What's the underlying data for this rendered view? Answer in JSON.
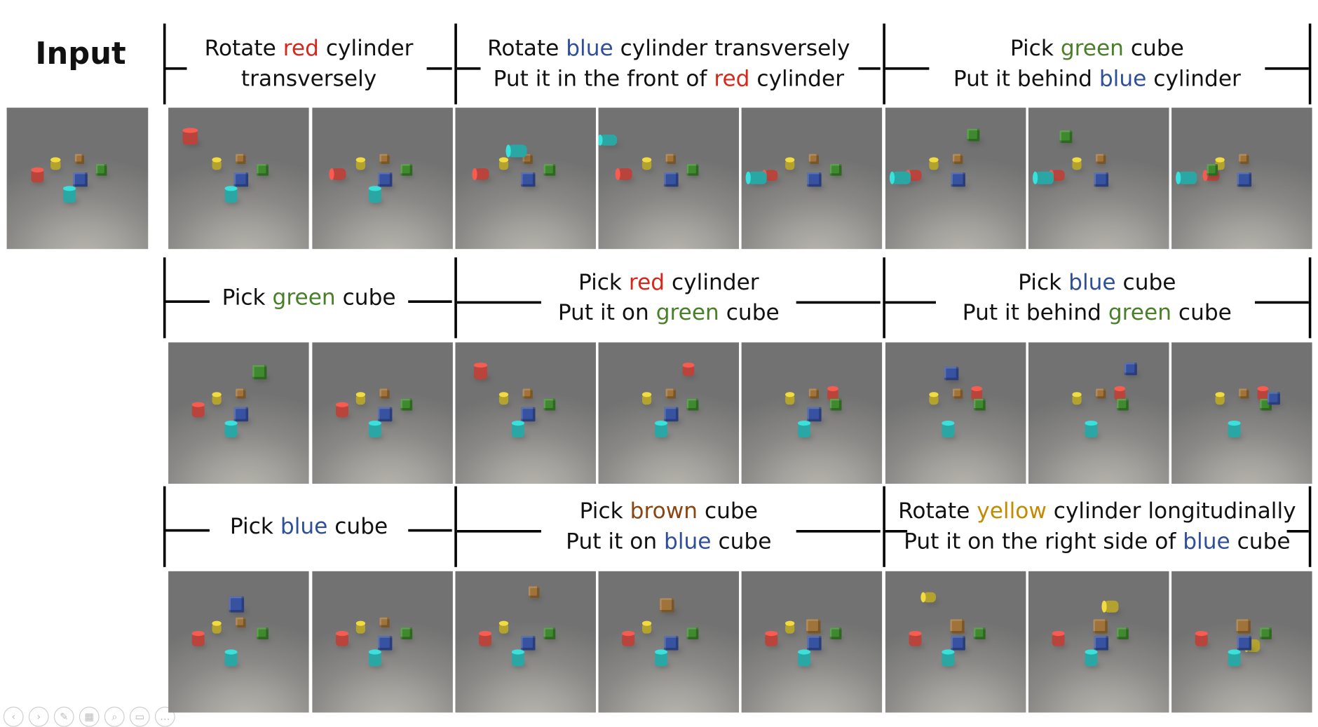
{
  "input_label": "Input",
  "colors": {
    "red": "#d9261c",
    "blue": "#2f4f9a",
    "green": "#4a7f2a",
    "brown": "#8b4513",
    "yellow": "#c48a00",
    "text": "#111111"
  },
  "rows": [
    {
      "groups": [
        {
          "lines": [
            [
              {
                "t": "Rotate "
              },
              {
                "t": "red",
                "c": "red"
              },
              {
                "t": " cylinder"
              }
            ],
            [
              {
                "t": "transversely"
              }
            ]
          ]
        },
        {
          "lines": [
            [
              {
                "t": "Rotate "
              },
              {
                "t": "blue",
                "c": "blue"
              },
              {
                "t": " cylinder transversely"
              }
            ],
            [
              {
                "t": "Put it in the front of "
              },
              {
                "t": "red",
                "c": "red"
              },
              {
                "t": " cylinder"
              }
            ]
          ]
        },
        {
          "lines": [
            [
              {
                "t": "Pick "
              },
              {
                "t": "green",
                "c": "green"
              },
              {
                "t": " cube"
              }
            ],
            [
              {
                "t": "Put it behind "
              },
              {
                "t": "blue",
                "c": "blue"
              },
              {
                "t": " cylinder"
              }
            ]
          ]
        }
      ]
    },
    {
      "groups": [
        {
          "lines": [
            [
              {
                "t": "Pick "
              },
              {
                "t": "green",
                "c": "green"
              },
              {
                "t": " cube"
              }
            ]
          ]
        },
        {
          "lines": [
            [
              {
                "t": "Pick "
              },
              {
                "t": "red",
                "c": "red"
              },
              {
                "t": " cylinder"
              }
            ],
            [
              {
                "t": "Put it on "
              },
              {
                "t": "green",
                "c": "green"
              },
              {
                "t": " cube"
              }
            ]
          ]
        },
        {
          "lines": [
            [
              {
                "t": "Pick "
              },
              {
                "t": "blue",
                "c": "blue"
              },
              {
                "t": " cube"
              }
            ],
            [
              {
                "t": "Put it behind "
              },
              {
                "t": "green",
                "c": "green"
              },
              {
                "t": " cube"
              }
            ]
          ]
        }
      ]
    },
    {
      "groups": [
        {
          "lines": [
            [
              {
                "t": "Pick "
              },
              {
                "t": "blue",
                "c": "blue"
              },
              {
                "t": " cube"
              }
            ]
          ]
        },
        {
          "lines": [
            [
              {
                "t": "Pick "
              },
              {
                "t": "brown",
                "c": "brown"
              },
              {
                "t": " cube"
              }
            ],
            [
              {
                "t": "Put it on "
              },
              {
                "t": "blue",
                "c": "blue"
              },
              {
                "t": " cube"
              }
            ]
          ]
        },
        {
          "lines": [
            [
              {
                "t": "Rotate "
              },
              {
                "t": "yellow",
                "c": "yellow"
              },
              {
                "t": " cylinder longitudinally"
              }
            ],
            [
              {
                "t": "Put it on the right side of "
              },
              {
                "t": "blue",
                "c": "blue"
              },
              {
                "t": " cube"
              }
            ]
          ]
        }
      ]
    }
  ]
}
